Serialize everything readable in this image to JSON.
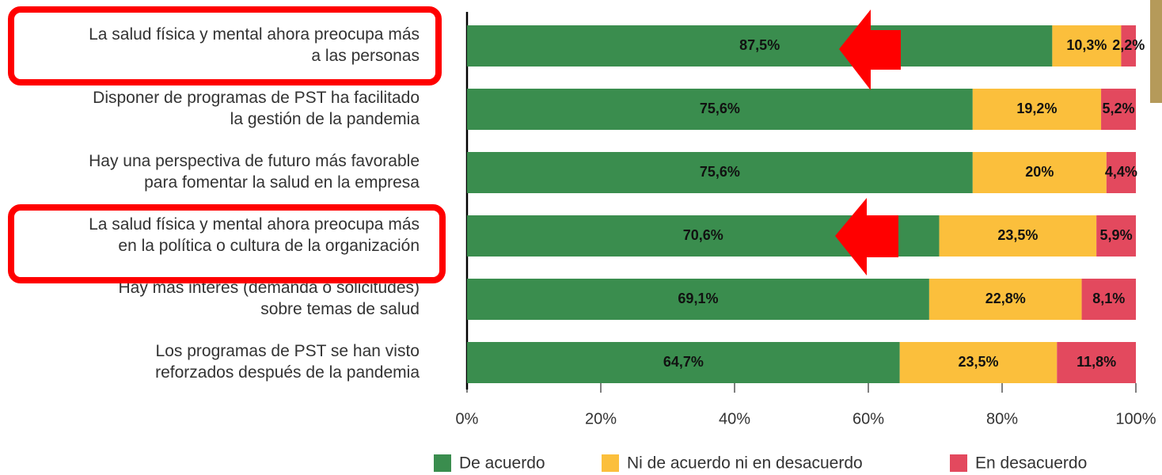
{
  "chart_data": {
    "type": "stacked-bar-horizontal",
    "categories": [
      [
        "La salud física y mental ahora preocupa más",
        "a las personas"
      ],
      [
        "Disponer de programas de PST ha facilitado",
        "la gestión de la pandemia"
      ],
      [
        "Hay una perspectiva de futuro más favorable",
        "para fomentar la salud en la empresa"
      ],
      [
        "La salud física y mental ahora preocupa más",
        "en la política o cultura de la organización"
      ],
      [
        "Hay más interés (demanda o solicitudes)",
        "sobre temas de salud"
      ],
      [
        "Los programas de PST se han visto",
        "reforzados después de la pandemia"
      ]
    ],
    "series": [
      {
        "name": "De acuerdo",
        "color": "#3a8d4e",
        "values": [
          87.5,
          75.6,
          75.6,
          70.6,
          69.1,
          64.7
        ],
        "value_labels": [
          "87,5%",
          "75,6%",
          "75,6%",
          "70,6%",
          "69,1%",
          "64,7%"
        ]
      },
      {
        "name": "Ni de acuerdo ni en desacuerdo",
        "color": "#fbbf3c",
        "values": [
          10.3,
          19.2,
          20,
          23.5,
          22.8,
          23.5
        ],
        "value_labels": [
          "10,3%",
          "19,2%",
          "20%",
          "23,5%",
          "22,8%",
          "23,5%"
        ]
      },
      {
        "name": "En desacuerdo",
        "color": "#e3495e",
        "values": [
          2.2,
          5.2,
          4.4,
          5.9,
          8.1,
          11.8
        ],
        "value_labels": [
          "2,2%",
          "5,2%",
          "4,4%",
          "5,9%",
          "8,1%",
          "11,8%"
        ]
      }
    ],
    "xlim": [
      0,
      100
    ],
    "xticks": [
      {
        "value": 0,
        "label": "0%"
      },
      {
        "value": 20,
        "label": "20%"
      },
      {
        "value": 40,
        "label": "40%"
      },
      {
        "value": 60,
        "label": "60%"
      },
      {
        "value": 80,
        "label": "80%"
      },
      {
        "value": 100,
        "label": "100%"
      }
    ]
  }
}
